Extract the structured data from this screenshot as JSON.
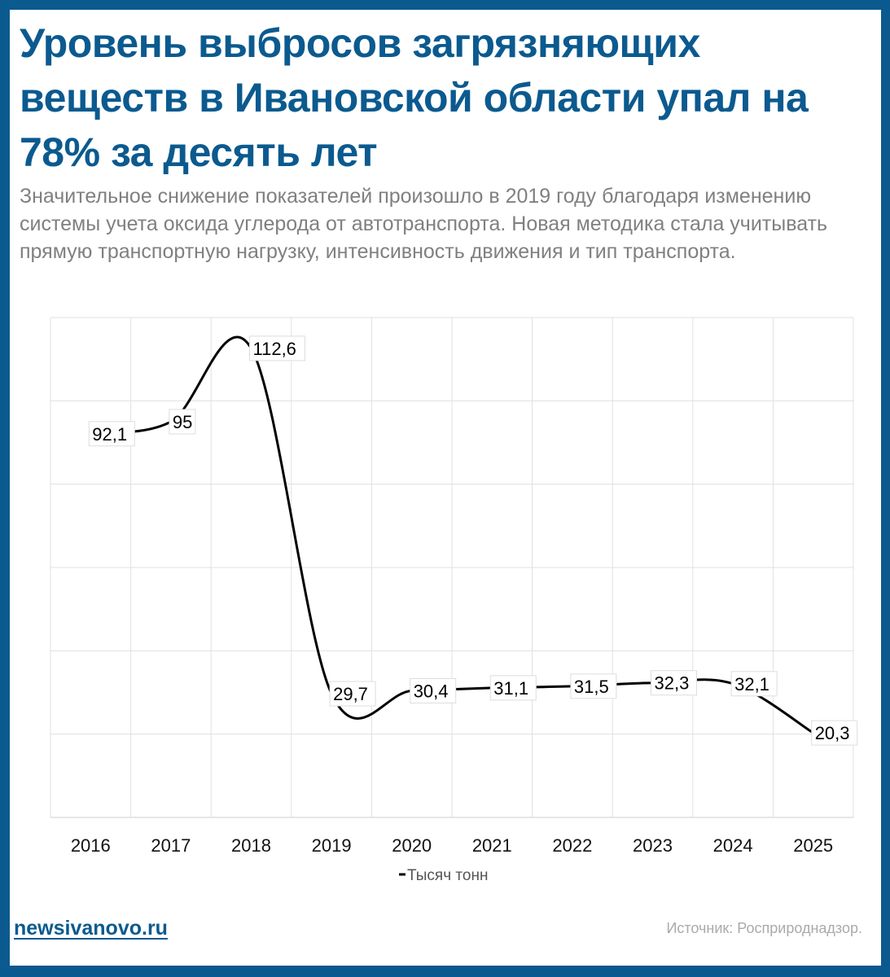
{
  "title": "Уровень выбросов загрязняющих веществ в Ивановской области упал на 78% за десять лет",
  "subtitle": "Значительное снижение показателей произошло в 2019 году благодаря изменению системы учета оксида углерода от автотранспорта. Новая методика стала учитывать прямую транспортную нагрузку, интенсивность движения и тип транспорта.",
  "footer": {
    "site": "newsivanovo.ru",
    "source": "Источник: Росприроднадзор."
  },
  "colors": {
    "brand": "#0b5a8f",
    "line": "#000000",
    "grid": "#e0e0e0"
  },
  "chart_data": {
    "type": "line",
    "categories": [
      "2016",
      "2017",
      "2018",
      "2019",
      "2020",
      "2021",
      "2022",
      "2023",
      "2024",
      "2025"
    ],
    "series": [
      {
        "name": "Тысяч тонн",
        "values": [
          92.1,
          95,
          112.6,
          29.7,
          30.4,
          31.1,
          31.5,
          32.3,
          32.1,
          20.3
        ],
        "labels": [
          "92,1",
          "95",
          "112,6",
          "29,7",
          "30,4",
          "31,1",
          "31,5",
          "32,3",
          "32,1",
          "20,3"
        ]
      }
    ],
    "ylim": [
      0,
      120
    ],
    "y_gridlines": 6,
    "grid": true,
    "legend": "bottom-center",
    "smooth": true
  }
}
